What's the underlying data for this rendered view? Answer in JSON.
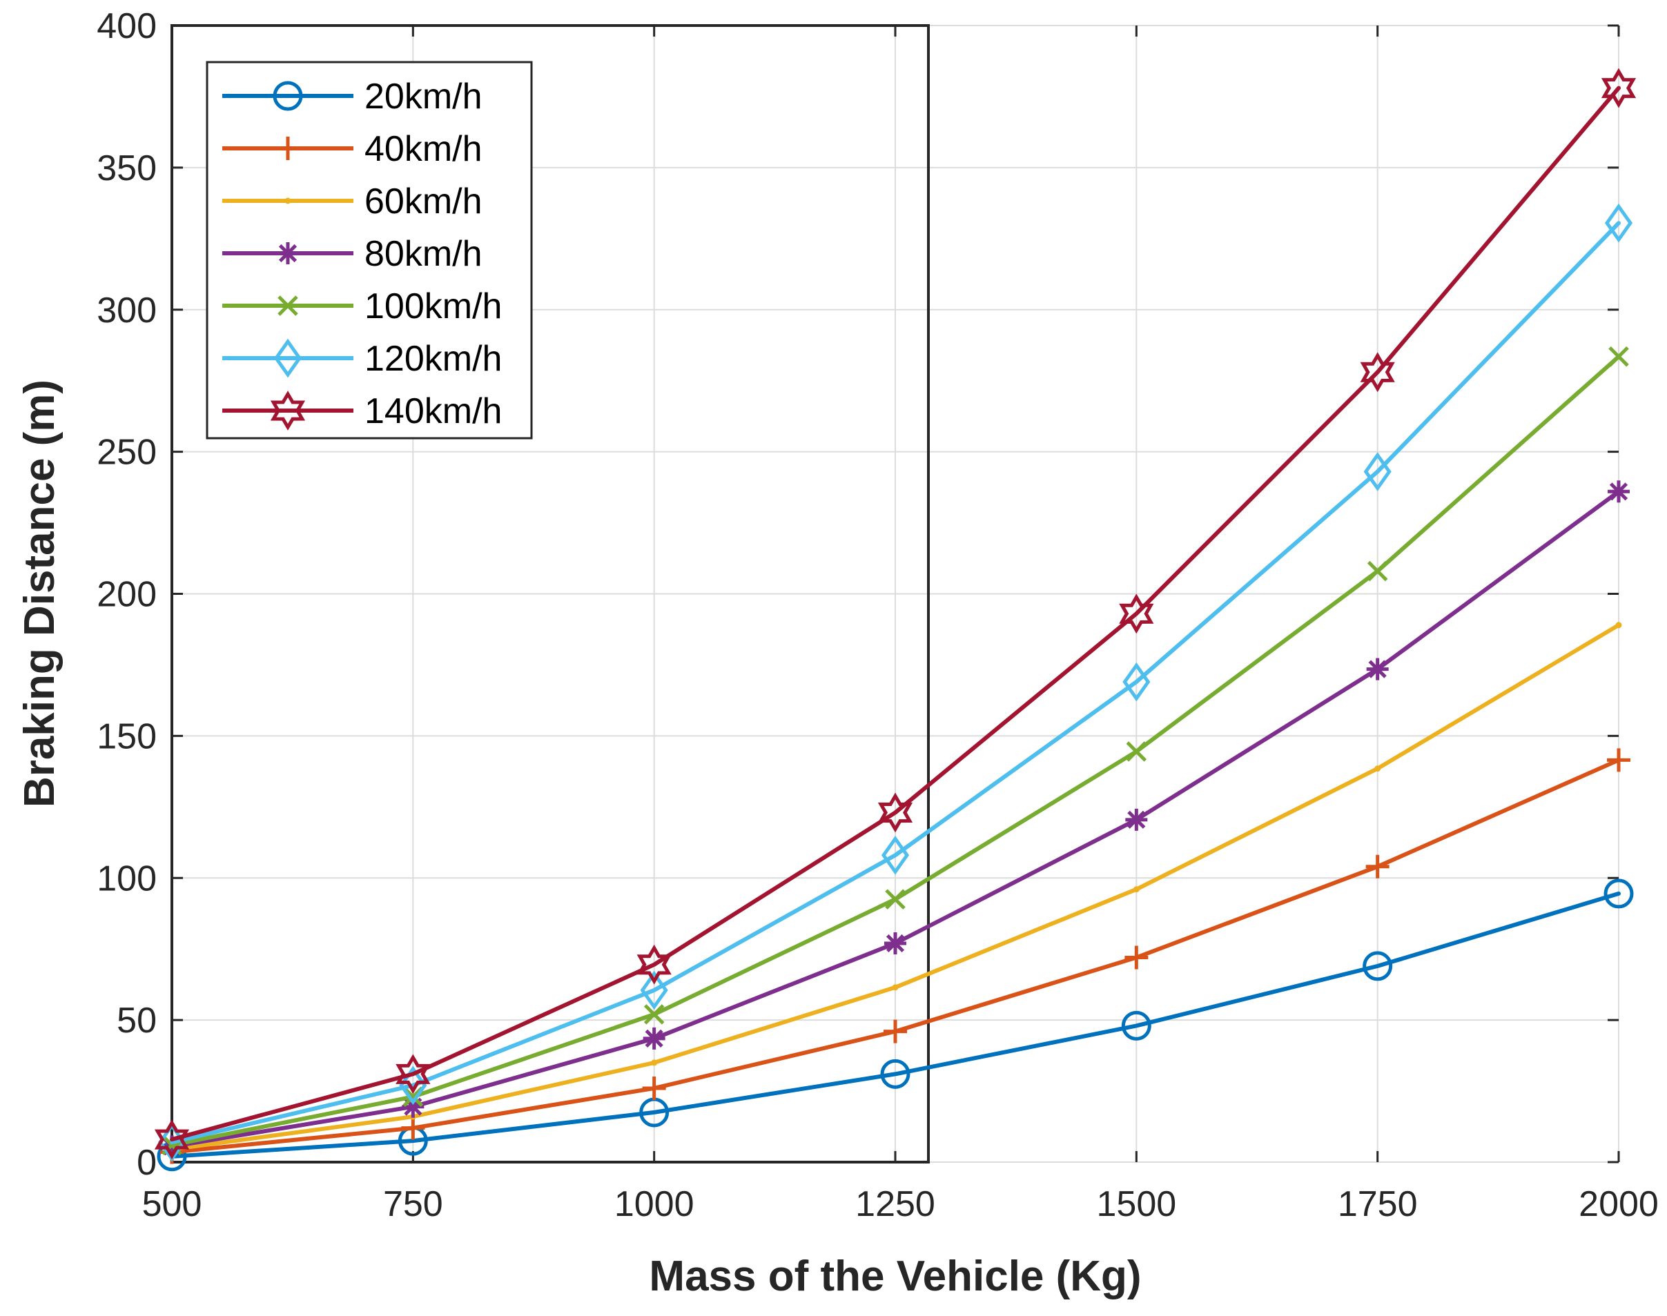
{
  "chart_data": {
    "type": "line",
    "title": "",
    "xlabel": "Mass of the Vehicle (Kg)",
    "ylabel": "Braking Distance (m)",
    "xlim": [
      500,
      2000
    ],
    "ylim": [
      0,
      400
    ],
    "xticks": [
      "500",
      "750",
      "1000",
      "1250",
      "1500",
      "1750",
      "2000"
    ],
    "yticks": [
      "0",
      "50",
      "100",
      "150",
      "200",
      "250",
      "300",
      "350",
      "400"
    ],
    "grid": true,
    "legend_position": "top-left",
    "x": [
      500,
      750,
      1000,
      1250,
      1500,
      1750,
      2000
    ],
    "series": [
      {
        "name": "20km/h",
        "color": "#0072BD",
        "marker": "circle",
        "values": [
          2,
          7.5,
          17.5,
          31,
          48,
          69,
          94.5
        ]
      },
      {
        "name": "40km/h",
        "color": "#D95319",
        "marker": "plus",
        "values": [
          3.5,
          12,
          26,
          46,
          72,
          104,
          141.5
        ]
      },
      {
        "name": "60km/h",
        "color": "#EDB120",
        "marker": "point",
        "values": [
          4.5,
          16,
          35,
          61.5,
          96,
          138.5,
          189
        ]
      },
      {
        "name": "80km/h",
        "color": "#7E2F8E",
        "marker": "asterisk",
        "values": [
          5.5,
          19.5,
          43.5,
          77,
          120.5,
          173.5,
          236
        ]
      },
      {
        "name": "100km/h",
        "color": "#77AC30",
        "marker": "x",
        "values": [
          6,
          23,
          52,
          92.5,
          144.5,
          208,
          283.5
        ]
      },
      {
        "name": "120km/h",
        "color": "#4DBEEE",
        "marker": "diamond",
        "values": [
          7,
          27,
          60.5,
          108,
          169,
          243,
          330.5
        ]
      },
      {
        "name": "140km/h",
        "color": "#A2142F",
        "marker": "hexagram",
        "values": [
          8,
          31,
          69.5,
          123,
          193,
          278,
          378
        ]
      }
    ]
  }
}
